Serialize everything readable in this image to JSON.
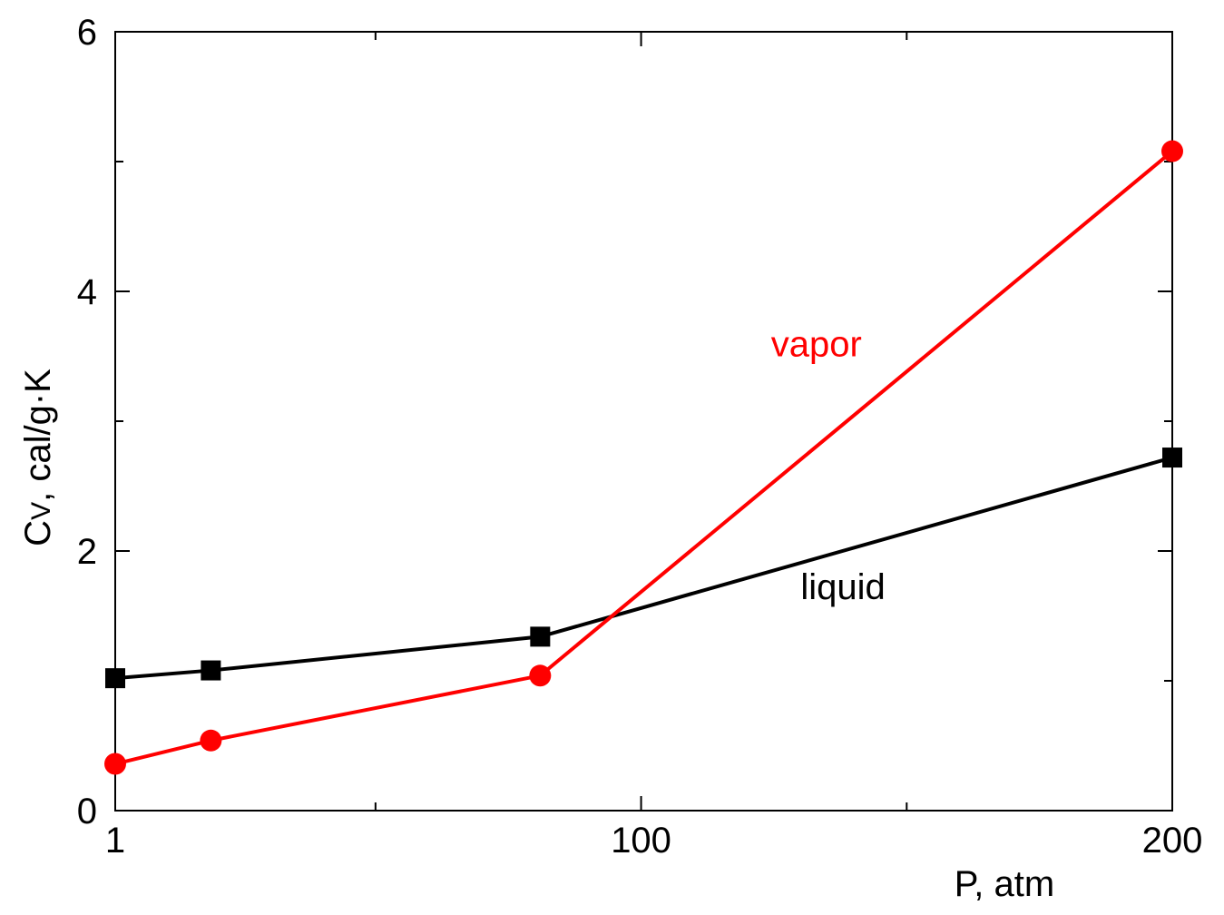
{
  "chart_data": {
    "type": "line",
    "xlabel": "P, atm",
    "ylabel_main": "C",
    "ylabel_sub": "V",
    "ylabel_rest": ", cal/g·K",
    "xlim": [
      1,
      200
    ],
    "ylim": [
      0,
      6
    ],
    "x_ticks": [
      1,
      100,
      200
    ],
    "x_minor_ticks": [
      50,
      150
    ],
    "y_ticks": [
      0,
      2,
      4,
      6
    ],
    "y_minor_ticks": [
      1,
      3,
      5
    ],
    "grid": false,
    "series": [
      {
        "name": "liquid",
        "color": "#000000",
        "marker": "square",
        "x": [
          1,
          19,
          81,
          200
        ],
        "y": [
          1.02,
          1.08,
          1.34,
          2.72
        ]
      },
      {
        "name": "vapor",
        "color": "#ff0000",
        "marker": "circle",
        "x": [
          1,
          19,
          81,
          200
        ],
        "y": [
          0.36,
          0.54,
          1.04,
          5.08
        ]
      }
    ],
    "annotations": [
      {
        "text": "vapor",
        "color": "#ff0000",
        "x": 133,
        "y": 3.5
      },
      {
        "text": "liquid",
        "color": "#000000",
        "x": 138,
        "y": 1.63
      }
    ]
  }
}
